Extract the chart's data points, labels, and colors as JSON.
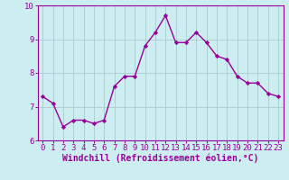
{
  "x": [
    0,
    1,
    2,
    3,
    4,
    5,
    6,
    7,
    8,
    9,
    10,
    11,
    12,
    13,
    14,
    15,
    16,
    17,
    18,
    19,
    20,
    21,
    22,
    23
  ],
  "y": [
    7.3,
    7.1,
    6.4,
    6.6,
    6.6,
    6.5,
    6.6,
    7.6,
    7.9,
    7.9,
    8.8,
    9.2,
    9.7,
    8.9,
    8.9,
    9.2,
    8.9,
    8.5,
    8.4,
    7.9,
    7.7,
    7.7,
    7.4,
    7.3
  ],
  "line_color": "#990099",
  "marker": "D",
  "marker_size": 2.2,
  "background_color": "#cceef0",
  "grid_color": "#aacccc",
  "xlabel": "Windchill (Refroidissement éolien,°C)",
  "ylabel": "",
  "ylim": [
    6,
    10
  ],
  "xlim": [
    -0.5,
    23.5
  ],
  "yticks": [
    6,
    7,
    8,
    9,
    10
  ],
  "xticks": [
    0,
    1,
    2,
    3,
    4,
    5,
    6,
    7,
    8,
    9,
    10,
    11,
    12,
    13,
    14,
    15,
    16,
    17,
    18,
    19,
    20,
    21,
    22,
    23
  ],
  "xlabel_fontsize": 7,
  "tick_fontsize": 6.5,
  "line_width": 1.0
}
